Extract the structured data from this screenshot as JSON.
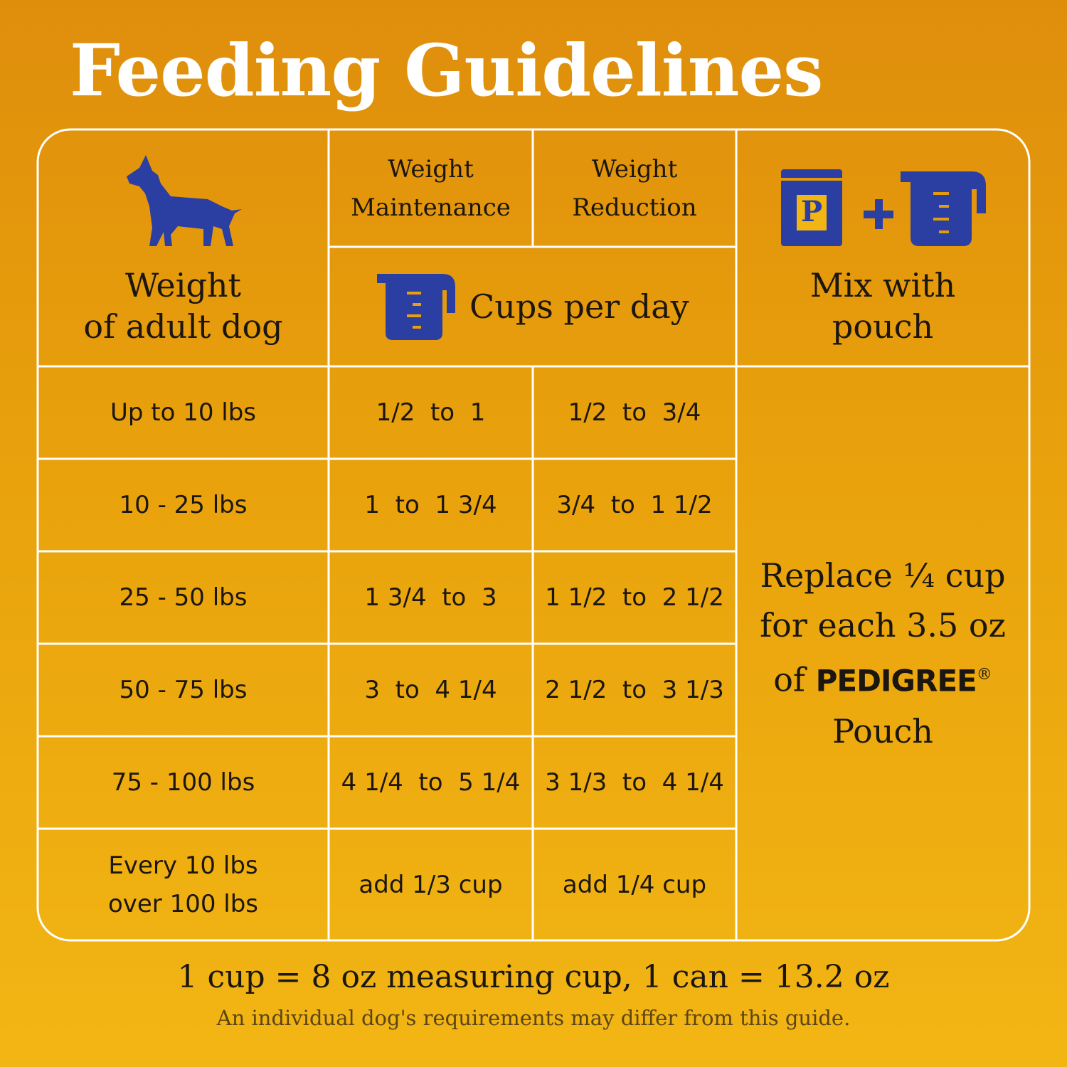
{
  "title": "Feeding Guidelines",
  "table": {
    "header": {
      "weight": [
        "Weight",
        "of adult dog"
      ],
      "maintenance": [
        "Weight",
        "Maintenance"
      ],
      "reduction": [
        "Weight",
        "Reduction"
      ],
      "cups": "Cups per day",
      "pouch_icon": "P",
      "mix": [
        "Mix with",
        "pouch"
      ]
    },
    "rows": [
      {
        "weight": [
          "Up to 10 lbs"
        ],
        "maintenance": "1/2  to  1",
        "reduction": "1/2  to  3/4"
      },
      {
        "weight": [
          "10 - 25 lbs"
        ],
        "maintenance": "1  to  1 3/4",
        "reduction": "3/4  to  1 1/2"
      },
      {
        "weight": [
          "25 - 50 lbs"
        ],
        "maintenance": "1 3/4  to  3",
        "reduction": "1 1/2  to  2 1/2"
      },
      {
        "weight": [
          "50 - 75 lbs"
        ],
        "maintenance": "3  to  4 1/4",
        "reduction": "2 1/2  to  3 1/3"
      },
      {
        "weight": [
          "75 - 100 lbs"
        ],
        "maintenance": "4 1/4  to  5 1/4",
        "reduction": "3 1/3  to  4 1/4"
      },
      {
        "weight": [
          "Every 10 lbs",
          "over 100 lbs"
        ],
        "maintenance": "add 1/3 cup",
        "reduction": "add 1/4 cup"
      }
    ],
    "mix_note": {
      "lines": [
        "Replace ¼ cup",
        "for each 3.5 oz"
      ],
      "prefix": "of",
      "brand": "PEDIGREE",
      "mark": "®",
      "last": "Pouch"
    }
  },
  "footer": {
    "note": "1 cup = 8 oz measuring cup, 1 can = 13.2 oz",
    "disclaimer": "An individual dog's requirements may differ from this guide."
  }
}
